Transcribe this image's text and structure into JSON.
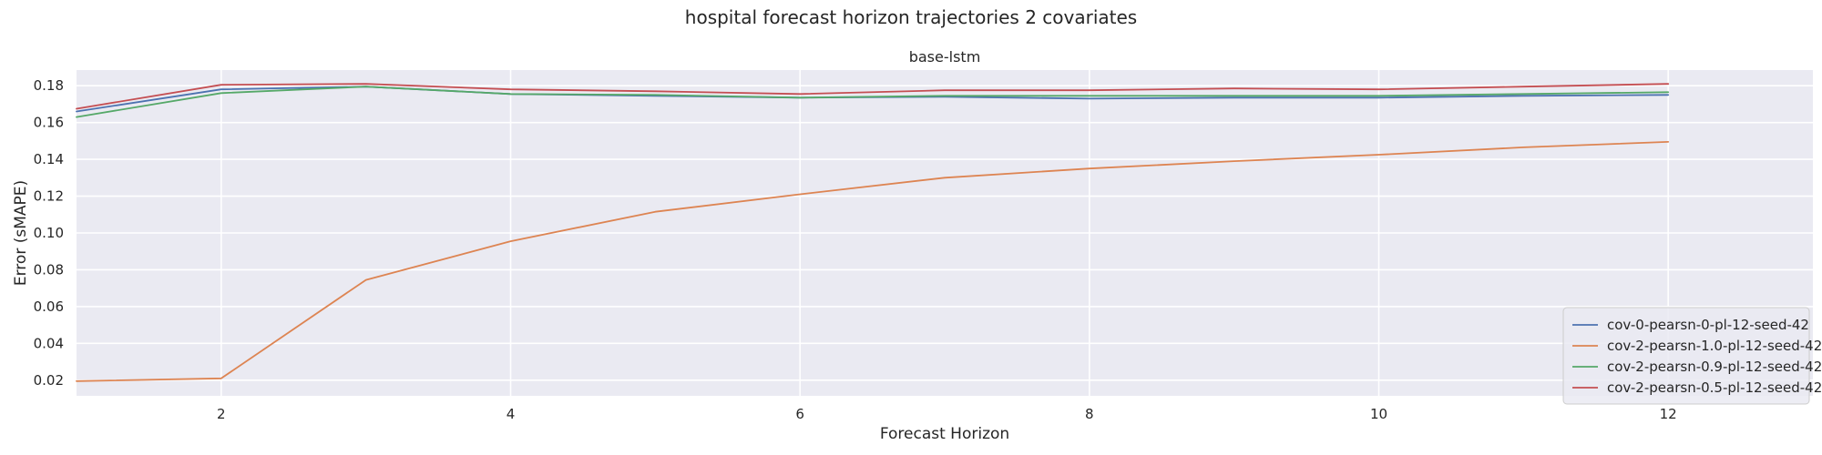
{
  "chart_data": {
    "type": "line",
    "title": "hospital forecast horizon trajectories 2 covariates",
    "subtitle": "base-lstm",
    "xlabel": "Forecast Horizon",
    "ylabel": "Error (sMAPE)",
    "xlim": [
      1,
      13
    ],
    "ylim": [
      0.0115,
      0.1885
    ],
    "xticks": [
      2,
      4,
      6,
      8,
      10,
      12
    ],
    "yticks": [
      0.02,
      0.04,
      0.06,
      0.08,
      0.1,
      0.12,
      0.14,
      0.16,
      0.18
    ],
    "ytick_labels": [
      "0.02",
      "0.04",
      "0.06",
      "0.08",
      "0.10",
      "0.12",
      "0.14",
      "0.16",
      "0.18"
    ],
    "grid": true,
    "legend_position": "lower-right",
    "x": [
      1,
      2,
      3,
      4,
      5,
      6,
      7,
      8,
      9,
      10,
      11,
      12
    ],
    "series": [
      {
        "name": "cov-0-pearsn-0-pl-12-seed-42",
        "color": "#4c72b0",
        "values": [
          0.166,
          0.178,
          0.1795,
          0.1755,
          0.1745,
          0.1735,
          0.174,
          0.173,
          0.1735,
          0.1735,
          0.1745,
          0.175
        ]
      },
      {
        "name": "cov-2-pearsn-1.0-pl-12-seed-42",
        "color": "#dd8452",
        "values": [
          0.0195,
          0.021,
          0.0745,
          0.0955,
          0.1115,
          0.121,
          0.13,
          0.135,
          0.139,
          0.1425,
          0.1465,
          0.1495
        ]
      },
      {
        "name": "cov-2-pearsn-0.9-pl-12-seed-42",
        "color": "#55a868",
        "values": [
          0.163,
          0.176,
          0.1795,
          0.1755,
          0.175,
          0.1735,
          0.1745,
          0.1745,
          0.1745,
          0.1745,
          0.1755,
          0.1765
        ]
      },
      {
        "name": "cov-2-pearsn-0.5-pl-12-seed-42",
        "color": "#c44e52",
        "values": [
          0.1675,
          0.1805,
          0.181,
          0.178,
          0.177,
          0.1755,
          0.1775,
          0.1775,
          0.1785,
          0.178,
          0.1795,
          0.181
        ]
      }
    ]
  }
}
